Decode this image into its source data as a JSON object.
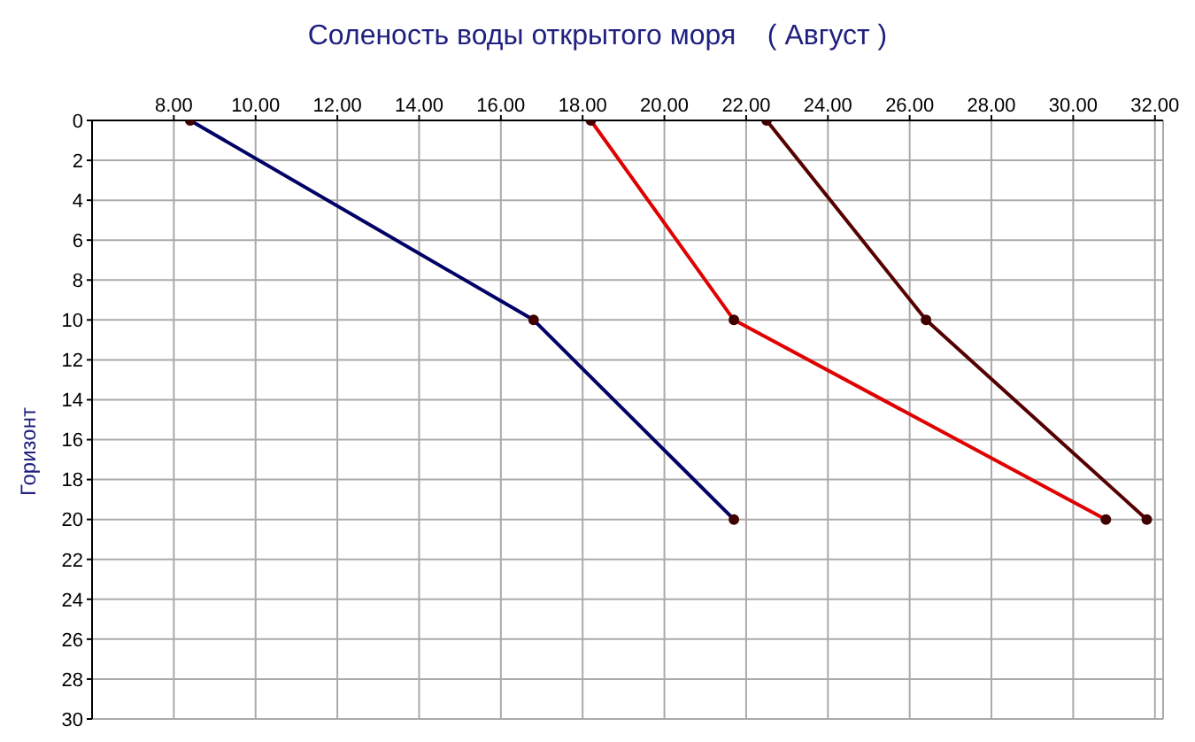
{
  "chart_data": {
    "type": "line",
    "title": "Соленость воды открытого моря    ( Август )",
    "ylabel": "Горизонт",
    "series": [
      {
        "color": "#000066",
        "x": [
          8.4,
          16.8,
          21.7
        ],
        "values": [
          0,
          10,
          20
        ]
      },
      {
        "color": "#e00000",
        "x": [
          18.2,
          21.7,
          30.8
        ],
        "values": [
          0,
          10,
          20
        ]
      },
      {
        "color": "#550000",
        "x": [
          22.5,
          26.4,
          31.8
        ],
        "values": [
          0,
          10,
          20
        ]
      }
    ],
    "xlim": [
      6,
      32.2
    ],
    "xticks": [
      {
        "value": 8,
        "label": "8.00"
      },
      {
        "value": 10,
        "label": "10.00"
      },
      {
        "value": 12,
        "label": "12.00"
      },
      {
        "value": 14,
        "label": "14.00"
      },
      {
        "value": 16,
        "label": "16.00"
      },
      {
        "value": 18,
        "label": "18.00"
      },
      {
        "value": 20,
        "label": "20.00"
      },
      {
        "value": 22,
        "label": "22.00"
      },
      {
        "value": 24,
        "label": "24.00"
      },
      {
        "value": 26,
        "label": "26.00"
      },
      {
        "value": 28,
        "label": "28.00"
      },
      {
        "value": 30,
        "label": "30.00"
      },
      {
        "value": 32,
        "label": "32.00"
      }
    ],
    "ylim": [
      30,
      0
    ],
    "yticks": [
      0,
      2,
      4,
      6,
      8,
      10,
      12,
      14,
      16,
      18,
      20,
      22,
      24,
      26,
      28,
      30
    ],
    "grid": true,
    "marker": "circle",
    "line_style": "solid"
  }
}
